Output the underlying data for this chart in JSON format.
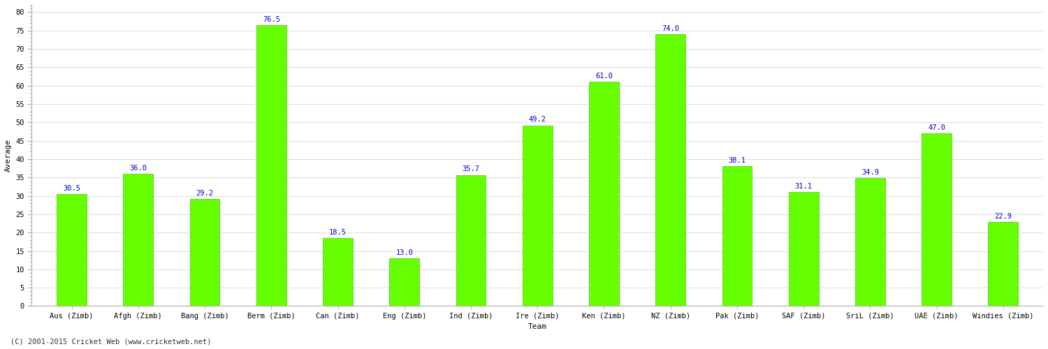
{
  "categories": [
    "Aus (Zimb)",
    "Afgh (Zimb)",
    "Bang (Zimb)",
    "Berm (Zimb)",
    "Can (Zimb)",
    "Eng (Zimb)",
    "Ind (Zimb)",
    "Ire (Zimb)",
    "Ken (Zimb)",
    "NZ (Zimb)",
    "Pak (Zimb)",
    "SAF (Zimb)",
    "SriL (Zimb)",
    "UAE (Zimb)",
    "Windies (Zimb)"
  ],
  "values": [
    30.5,
    36.0,
    29.2,
    76.5,
    18.5,
    13.0,
    35.7,
    49.2,
    61.0,
    74.0,
    38.1,
    31.1,
    34.9,
    47.0,
    22.9
  ],
  "bar_color": "#66ff00",
  "bar_edge_color": "#44cc00",
  "label_color": "#0000cc",
  "ylabel": "Average",
  "xlabel": "Team",
  "ylim": [
    0,
    82
  ],
  "yticks": [
    0,
    5,
    10,
    15,
    20,
    25,
    30,
    35,
    40,
    45,
    50,
    55,
    60,
    65,
    70,
    75,
    80
  ],
  "grid_color": "#dddddd",
  "bg_color": "#ffffff",
  "plot_bg_color": "#ffffff",
  "footer": "(C) 2001-2015 Cricket Web (www.cricketweb.net)",
  "label_fontsize": 7.5,
  "axis_label_fontsize": 8,
  "tick_fontsize": 7.5,
  "footer_fontsize": 7.5,
  "bar_width": 0.45
}
